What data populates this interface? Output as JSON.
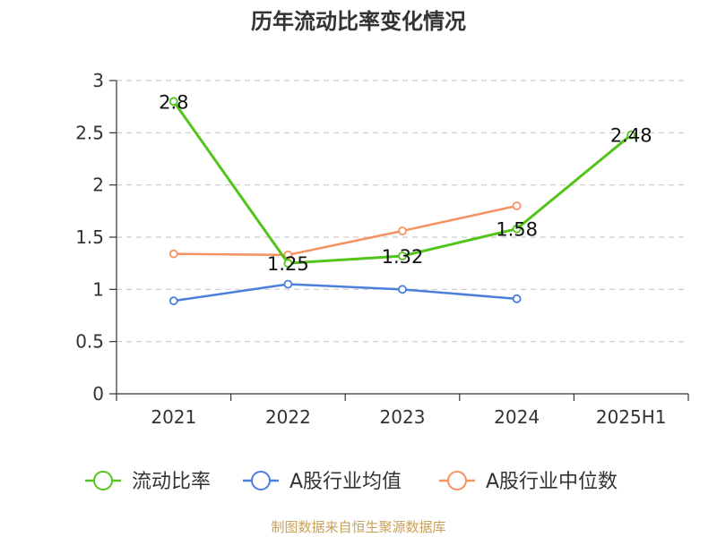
{
  "chart_data": {
    "type": "line",
    "title": "历年流动比率变化情况",
    "categories": [
      "2021",
      "2022",
      "2023",
      "2024",
      "2025H1"
    ],
    "ylim": [
      0,
      3
    ],
    "yticks": [
      "0",
      "0.5",
      "1",
      "1.5",
      "2",
      "2.5",
      "3"
    ],
    "grid": true,
    "legend_position": "bottom",
    "series": [
      {
        "name": "流动比率",
        "color": "#52c41a",
        "values": [
          2.8,
          1.25,
          1.32,
          1.58,
          2.48
        ],
        "labels": [
          "2.8",
          "1.25",
          "1.32",
          "1.58",
          "2.48"
        ]
      },
      {
        "name": "A股行业均值",
        "color": "#4a7fdb",
        "values": [
          0.89,
          1.05,
          1.0,
          0.91,
          null
        ]
      },
      {
        "name": "A股行业中位数",
        "color": "#f59261",
        "values": [
          1.34,
          1.33,
          1.56,
          1.8,
          null
        ]
      }
    ]
  },
  "footer": {
    "source": "制图数据来自恒生聚源数据库"
  }
}
